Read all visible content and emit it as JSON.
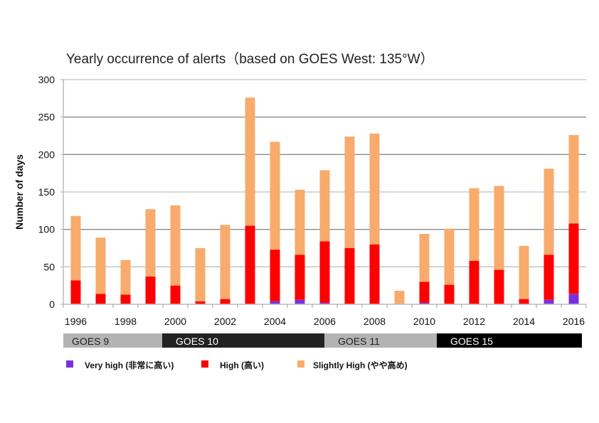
{
  "chart_data": {
    "type": "bar",
    "stacked": true,
    "title": "Yearly occurrence of alerts（based on GOES West: 135°W）",
    "xlabel": "",
    "ylabel": "Number of days",
    "ylim": [
      0,
      300
    ],
    "yticks": [
      0,
      50,
      100,
      150,
      200,
      250,
      300
    ],
    "grid": true,
    "legend_position": "bottom",
    "categories": [
      1996,
      1997,
      1998,
      1999,
      2000,
      2001,
      2002,
      2003,
      2004,
      2005,
      2006,
      2007,
      2008,
      2009,
      2010,
      2011,
      2012,
      2013,
      2014,
      2015,
      2016
    ],
    "xtick_labels": [
      "1996",
      "1998",
      "2000",
      "2002",
      "2004",
      "2006",
      "2008",
      "2010",
      "2012",
      "2014",
      "2016"
    ],
    "series": [
      {
        "name": "Very high (非常に高い)",
        "color": "#7b2fdc",
        "values": [
          0,
          0,
          0,
          0,
          0,
          0,
          0,
          0,
          4,
          6,
          2,
          0,
          0,
          0,
          2,
          0,
          0,
          0,
          0,
          6,
          14
        ]
      },
      {
        "name": "High (高い)",
        "color": "#ff0000",
        "values": [
          32,
          14,
          13,
          37,
          25,
          4,
          7,
          105,
          69,
          60,
          82,
          75,
          80,
          0,
          28,
          26,
          58,
          46,
          7,
          60,
          94
        ]
      },
      {
        "name": "Slightly High (やや高め)",
        "color": "#f8ab6c",
        "values": [
          86,
          75,
          46,
          90,
          107,
          71,
          99,
          171,
          144,
          87,
          95,
          149,
          148,
          18,
          64,
          75,
          97,
          112,
          71,
          115,
          118
        ]
      }
    ],
    "satellites": [
      {
        "label": "GOES 9",
        "from": 1996,
        "to": 1999,
        "color": "#b3b3b3",
        "text_color": "#222222"
      },
      {
        "label": "GOES 10",
        "from": 2000,
        "to": 2006,
        "color": "#222222",
        "text_color": "#ffffff"
      },
      {
        "label": "GOES 11",
        "from": 2006,
        "to": 2010,
        "color": "#b3b3b3",
        "text_color": "#222222"
      },
      {
        "label": "GOES 15",
        "from": 2011,
        "to": 2016,
        "color": "#000000",
        "text_color": "#ffffff"
      }
    ]
  }
}
